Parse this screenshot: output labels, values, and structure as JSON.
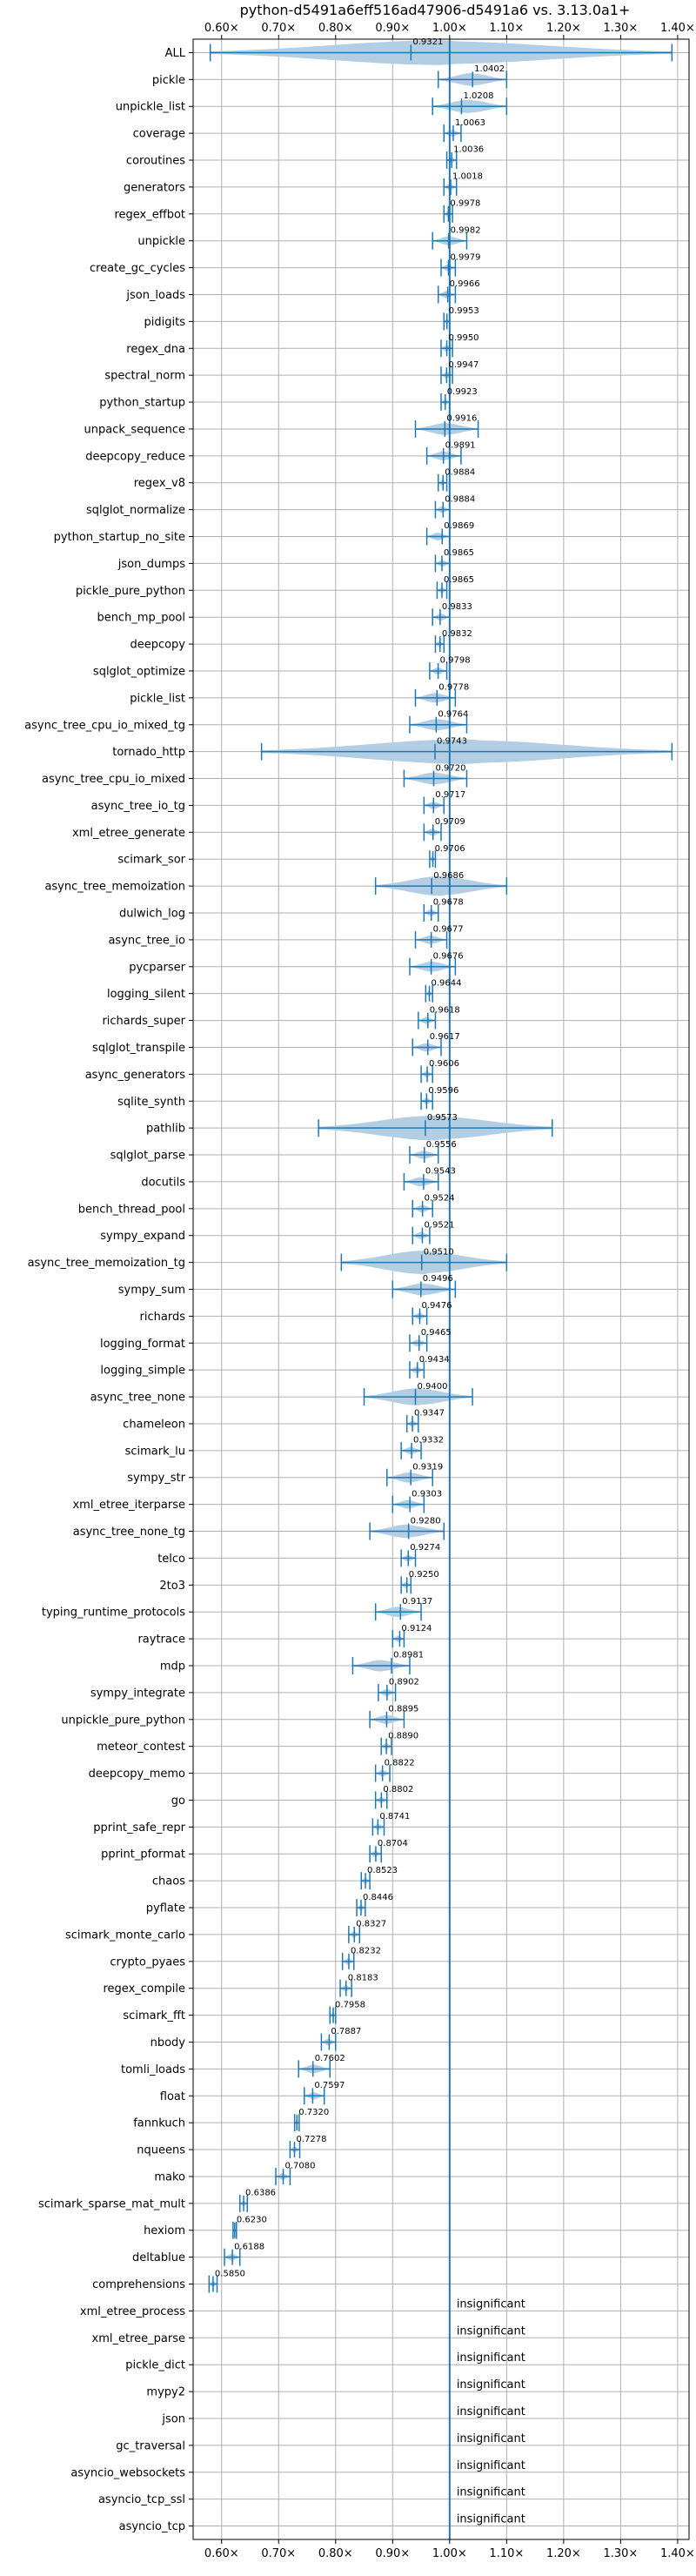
{
  "chart_data": {
    "type": "violin",
    "title": "python-d5491a6eff516ad47906-d5491a6 vs. 3.13.0a1+",
    "xlabel": "",
    "ylabel": "",
    "xlim": [
      0.55,
      1.42
    ],
    "x_ticks": [
      0.6,
      0.7,
      0.8,
      0.9,
      1.0,
      1.1,
      1.2,
      1.3,
      1.4
    ],
    "x_tick_labels": [
      "0.60×",
      "0.70×",
      "0.80×",
      "0.90×",
      "1.00×",
      "1.10×",
      "1.20×",
      "1.30×",
      "1.40×"
    ],
    "reference_line": 1.0,
    "grid": true,
    "color": "#1f77b4",
    "fill_color": "#b3cde3",
    "insignificant_label": "insignificant",
    "benchmarks": [
      {
        "name": "ALL",
        "value": 0.9321,
        "label": "0.9321",
        "min": 0.58,
        "max": 1.39
      },
      {
        "name": "pickle",
        "value": 1.0402,
        "label": "1.0402",
        "min": 0.98,
        "max": 1.1
      },
      {
        "name": "unpickle_list",
        "value": 1.0208,
        "label": "1.0208",
        "min": 0.97,
        "max": 1.1
      },
      {
        "name": "coverage",
        "value": 1.0063,
        "label": "1.0063",
        "min": 0.99,
        "max": 1.02
      },
      {
        "name": "coroutines",
        "value": 1.0036,
        "label": "1.0036",
        "min": 0.995,
        "max": 1.012
      },
      {
        "name": "generators",
        "value": 1.0018,
        "label": "1.0018",
        "min": 0.99,
        "max": 1.012
      },
      {
        "name": "regex_effbot",
        "value": 0.9978,
        "label": "0.9978",
        "min": 0.99,
        "max": 1.005
      },
      {
        "name": "unpickle",
        "value": 0.9982,
        "label": "0.9982",
        "min": 0.97,
        "max": 1.03
      },
      {
        "name": "create_gc_cycles",
        "value": 0.9979,
        "label": "0.9979",
        "min": 0.985,
        "max": 1.01
      },
      {
        "name": "json_loads",
        "value": 0.9966,
        "label": "0.9966",
        "min": 0.98,
        "max": 1.01
      },
      {
        "name": "pidigits",
        "value": 0.9953,
        "label": "0.9953",
        "min": 0.99,
        "max": 1.0
      },
      {
        "name": "regex_dna",
        "value": 0.995,
        "label": "0.9950",
        "min": 0.985,
        "max": 1.005
      },
      {
        "name": "spectral_norm",
        "value": 0.9947,
        "label": "0.9947",
        "min": 0.985,
        "max": 1.005
      },
      {
        "name": "python_startup",
        "value": 0.9923,
        "label": "0.9923",
        "min": 0.985,
        "max": 1.0
      },
      {
        "name": "unpack_sequence",
        "value": 0.9916,
        "label": "0.9916",
        "min": 0.94,
        "max": 1.05
      },
      {
        "name": "deepcopy_reduce",
        "value": 0.9891,
        "label": "0.9891",
        "min": 0.96,
        "max": 1.02
      },
      {
        "name": "regex_v8",
        "value": 0.9884,
        "label": "0.9884",
        "min": 0.98,
        "max": 0.995
      },
      {
        "name": "sqlglot_normalize",
        "value": 0.9884,
        "label": "0.9884",
        "min": 0.975,
        "max": 1.0
      },
      {
        "name": "python_startup_no_site",
        "value": 0.9869,
        "label": "0.9869",
        "min": 0.96,
        "max": 1.0
      },
      {
        "name": "json_dumps",
        "value": 0.9865,
        "label": "0.9865",
        "min": 0.975,
        "max": 1.0
      },
      {
        "name": "pickle_pure_python",
        "value": 0.9865,
        "label": "0.9865",
        "min": 0.978,
        "max": 0.995
      },
      {
        "name": "bench_mp_pool",
        "value": 0.9833,
        "label": "0.9833",
        "min": 0.97,
        "max": 1.0
      },
      {
        "name": "deepcopy",
        "value": 0.9832,
        "label": "0.9832",
        "min": 0.975,
        "max": 0.99
      },
      {
        "name": "sqlglot_optimize",
        "value": 0.9798,
        "label": "0.9798",
        "min": 0.965,
        "max": 0.995
      },
      {
        "name": "pickle_list",
        "value": 0.9778,
        "label": "0.9778",
        "min": 0.94,
        "max": 1.01
      },
      {
        "name": "async_tree_cpu_io_mixed_tg",
        "value": 0.9764,
        "label": "0.9764",
        "min": 0.93,
        "max": 1.03
      },
      {
        "name": "tornado_http",
        "value": 0.9743,
        "label": "0.9743",
        "min": 0.67,
        "max": 1.39
      },
      {
        "name": "async_tree_cpu_io_mixed",
        "value": 0.972,
        "label": "0.9720",
        "min": 0.92,
        "max": 1.03
      },
      {
        "name": "async_tree_io_tg",
        "value": 0.9717,
        "label": "0.9717",
        "min": 0.955,
        "max": 0.99
      },
      {
        "name": "xml_etree_generate",
        "value": 0.9709,
        "label": "0.9709",
        "min": 0.955,
        "max": 0.985
      },
      {
        "name": "scimark_sor",
        "value": 0.9706,
        "label": "0.9706",
        "min": 0.965,
        "max": 0.975
      },
      {
        "name": "async_tree_memoization",
        "value": 0.9686,
        "label": "0.9686",
        "min": 0.87,
        "max": 1.1
      },
      {
        "name": "dulwich_log",
        "value": 0.9678,
        "label": "0.9678",
        "min": 0.955,
        "max": 0.98
      },
      {
        "name": "async_tree_io",
        "value": 0.9677,
        "label": "0.9677",
        "min": 0.94,
        "max": 0.995
      },
      {
        "name": "pycparser",
        "value": 0.9676,
        "label": "0.9676",
        "min": 0.93,
        "max": 1.01
      },
      {
        "name": "logging_silent",
        "value": 0.9644,
        "label": "0.9644",
        "min": 0.958,
        "max": 0.97
      },
      {
        "name": "richards_super",
        "value": 0.9618,
        "label": "0.9618",
        "min": 0.945,
        "max": 0.975
      },
      {
        "name": "sqlglot_transpile",
        "value": 0.9617,
        "label": "0.9617",
        "min": 0.935,
        "max": 0.985
      },
      {
        "name": "async_generators",
        "value": 0.9606,
        "label": "0.9606",
        "min": 0.95,
        "max": 0.97
      },
      {
        "name": "sqlite_synth",
        "value": 0.9596,
        "label": "0.9596",
        "min": 0.95,
        "max": 0.97
      },
      {
        "name": "pathlib",
        "value": 0.9573,
        "label": "0.9573",
        "min": 0.77,
        "max": 1.18
      },
      {
        "name": "sqlglot_parse",
        "value": 0.9556,
        "label": "0.9556",
        "min": 0.93,
        "max": 0.98
      },
      {
        "name": "docutils",
        "value": 0.9543,
        "label": "0.9543",
        "min": 0.92,
        "max": 0.98
      },
      {
        "name": "bench_thread_pool",
        "value": 0.9524,
        "label": "0.9524",
        "min": 0.935,
        "max": 0.97
      },
      {
        "name": "sympy_expand",
        "value": 0.9521,
        "label": "0.9521",
        "min": 0.935,
        "max": 0.965
      },
      {
        "name": "async_tree_memoization_tg",
        "value": 0.951,
        "label": "0.9510",
        "min": 0.81,
        "max": 1.1
      },
      {
        "name": "sympy_sum",
        "value": 0.9496,
        "label": "0.9496",
        "min": 0.9,
        "max": 1.01
      },
      {
        "name": "richards",
        "value": 0.9476,
        "label": "0.9476",
        "min": 0.935,
        "max": 0.96
      },
      {
        "name": "logging_format",
        "value": 0.9465,
        "label": "0.9465",
        "min": 0.93,
        "max": 0.96
      },
      {
        "name": "logging_simple",
        "value": 0.9434,
        "label": "0.9434",
        "min": 0.93,
        "max": 0.955
      },
      {
        "name": "async_tree_none",
        "value": 0.94,
        "label": "0.9400",
        "min": 0.85,
        "max": 1.04
      },
      {
        "name": "chameleon",
        "value": 0.9347,
        "label": "0.9347",
        "min": 0.925,
        "max": 0.945
      },
      {
        "name": "scimark_lu",
        "value": 0.9332,
        "label": "0.9332",
        "min": 0.915,
        "max": 0.95
      },
      {
        "name": "sympy_str",
        "value": 0.9319,
        "label": "0.9319",
        "min": 0.89,
        "max": 0.97
      },
      {
        "name": "xml_etree_iterparse",
        "value": 0.9303,
        "label": "0.9303",
        "min": 0.9,
        "max": 0.955
      },
      {
        "name": "async_tree_none_tg",
        "value": 0.928,
        "label": "0.9280",
        "min": 0.86,
        "max": 0.99
      },
      {
        "name": "telco",
        "value": 0.9274,
        "label": "0.9274",
        "min": 0.915,
        "max": 0.94
      },
      {
        "name": "2to3",
        "value": 0.925,
        "label": "0.9250",
        "min": 0.915,
        "max": 0.932
      },
      {
        "name": "typing_runtime_protocols",
        "value": 0.9137,
        "label": "0.9137",
        "min": 0.87,
        "max": 0.95
      },
      {
        "name": "raytrace",
        "value": 0.9124,
        "label": "0.9124",
        "min": 0.9,
        "max": 0.92
      },
      {
        "name": "mdp",
        "value": 0.8981,
        "label": "0.8981",
        "min": 0.83,
        "max": 0.93
      },
      {
        "name": "sympy_integrate",
        "value": 0.8902,
        "label": "0.8902",
        "min": 0.875,
        "max": 0.905
      },
      {
        "name": "unpickle_pure_python",
        "value": 0.8895,
        "label": "0.8895",
        "min": 0.86,
        "max": 0.92
      },
      {
        "name": "meteor_contest",
        "value": 0.889,
        "label": "0.8890",
        "min": 0.88,
        "max": 0.898
      },
      {
        "name": "deepcopy_memo",
        "value": 0.8822,
        "label": "0.8822",
        "min": 0.87,
        "max": 0.895
      },
      {
        "name": "go",
        "value": 0.8802,
        "label": "0.8802",
        "min": 0.87,
        "max": 0.89
      },
      {
        "name": "pprint_safe_repr",
        "value": 0.8741,
        "label": "0.8741",
        "min": 0.865,
        "max": 0.885
      },
      {
        "name": "pprint_pformat",
        "value": 0.8704,
        "label": "0.8704",
        "min": 0.86,
        "max": 0.88
      },
      {
        "name": "chaos",
        "value": 0.8523,
        "label": "0.8523",
        "min": 0.845,
        "max": 0.86
      },
      {
        "name": "pyflate",
        "value": 0.8446,
        "label": "0.8446",
        "min": 0.837,
        "max": 0.852
      },
      {
        "name": "scimark_monte_carlo",
        "value": 0.8327,
        "label": "0.8327",
        "min": 0.823,
        "max": 0.842
      },
      {
        "name": "crypto_pyaes",
        "value": 0.8232,
        "label": "0.8232",
        "min": 0.812,
        "max": 0.832
      },
      {
        "name": "regex_compile",
        "value": 0.8183,
        "label": "0.8183",
        "min": 0.808,
        "max": 0.828
      },
      {
        "name": "scimark_fft",
        "value": 0.7958,
        "label": "0.7958",
        "min": 0.79,
        "max": 0.8
      },
      {
        "name": "nbody",
        "value": 0.7887,
        "label": "0.7887",
        "min": 0.775,
        "max": 0.8
      },
      {
        "name": "tomli_loads",
        "value": 0.7602,
        "label": "0.7602",
        "min": 0.735,
        "max": 0.79
      },
      {
        "name": "float",
        "value": 0.7597,
        "label": "0.7597",
        "min": 0.745,
        "max": 0.78
      },
      {
        "name": "fannkuch",
        "value": 0.732,
        "label": "0.7320",
        "min": 0.728,
        "max": 0.736
      },
      {
        "name": "nqueens",
        "value": 0.7278,
        "label": "0.7278",
        "min": 0.72,
        "max": 0.737
      },
      {
        "name": "mako",
        "value": 0.708,
        "label": "0.7080",
        "min": 0.695,
        "max": 0.72
      },
      {
        "name": "scimark_sparse_mat_mult",
        "value": 0.6386,
        "label": "0.6386",
        "min": 0.632,
        "max": 0.645
      },
      {
        "name": "hexiom",
        "value": 0.623,
        "label": "0.6230",
        "min": 0.62,
        "max": 0.626
      },
      {
        "name": "deltablue",
        "value": 0.6188,
        "label": "0.6188",
        "min": 0.605,
        "max": 0.632
      },
      {
        "name": "comprehensions",
        "value": 0.585,
        "label": "0.5850",
        "min": 0.578,
        "max": 0.592
      },
      {
        "name": "xml_etree_process",
        "insignificant": true
      },
      {
        "name": "xml_etree_parse",
        "insignificant": true
      },
      {
        "name": "pickle_dict",
        "insignificant": true
      },
      {
        "name": "mypy2",
        "insignificant": true
      },
      {
        "name": "json",
        "insignificant": true
      },
      {
        "name": "gc_traversal",
        "insignificant": true
      },
      {
        "name": "asyncio_websockets",
        "insignificant": true
      },
      {
        "name": "asyncio_tcp_ssl",
        "insignificant": true
      },
      {
        "name": "asyncio_tcp",
        "insignificant": true
      }
    ]
  }
}
